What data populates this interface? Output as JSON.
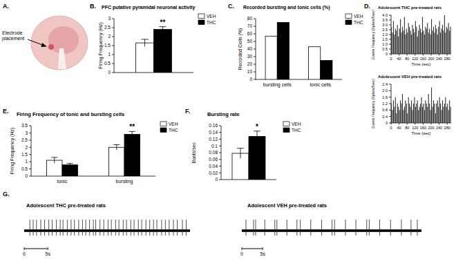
{
  "chart_data": [
    {
      "type": "bar",
      "panel": "B.",
      "title": "PFC putative pyramidal neuronal activity",
      "y_label": "Firing Frequency (Hz)",
      "categories": [
        null
      ],
      "series": [
        {
          "name": "VEH",
          "color": "#ffffff",
          "values": [
            1.65
          ],
          "errors": [
            0.2
          ]
        },
        {
          "name": "THC",
          "color": "#000000",
          "values": [
            2.4
          ],
          "errors": [
            0.15
          ]
        }
      ],
      "ylim": [
        0,
        3
      ],
      "yticks": [
        0,
        0.5,
        1,
        1.5,
        2,
        2.5,
        3
      ],
      "legend": "right",
      "annotations": [
        {
          "text": "**",
          "series": 1,
          "index": 0
        }
      ]
    },
    {
      "type": "bar",
      "panel": "C.",
      "title": "Recorded bursting and tonic cells (%)",
      "y_label": "Recorded Cells (%)",
      "categories": [
        "bursting cells",
        "tonic cells"
      ],
      "series": [
        {
          "name": "VEH",
          "color": "#ffffff",
          "values": [
            57,
            43
          ]
        },
        {
          "name": "THC",
          "color": "#000000",
          "values": [
            75,
            25
          ]
        }
      ],
      "ylim": [
        0,
        80
      ],
      "yticks": [
        0,
        10,
        20,
        30,
        40,
        50,
        60,
        70,
        80
      ],
      "legend": "right"
    },
    {
      "type": "histogram",
      "panel": "D.",
      "title": "Adolescent THC pre-treated rats",
      "x_label": "Time (sec)",
      "y_label": "Events Frequency (Spikes/5sec)",
      "color": "#333333",
      "bins": [
        0,
        5,
        10,
        15,
        20,
        25,
        30,
        35,
        40,
        45,
        50,
        55,
        60,
        65,
        70,
        75,
        80,
        85,
        90,
        95,
        100,
        105,
        110,
        115,
        120,
        125,
        130,
        135,
        140,
        145,
        150,
        155,
        160,
        165,
        170,
        175,
        180,
        185,
        190,
        195,
        200,
        205,
        210,
        215,
        220,
        225,
        230,
        235,
        240,
        245,
        250,
        255,
        260,
        265,
        270,
        275,
        280,
        285,
        290,
        295,
        300
      ],
      "values": [
        2.8,
        2.2,
        3.4,
        2.0,
        2.6,
        2.4,
        3.0,
        1.8,
        2.6,
        3.6,
        2.2,
        2.8,
        2.4,
        3.8,
        2.0,
        2.6,
        2.2,
        3.2,
        2.8,
        2.4,
        2.0,
        3.0,
        2.6,
        2.2,
        3.4,
        2.8,
        1.8,
        2.4,
        3.0,
        2.6,
        2.2,
        3.8,
        2.4,
        2.0,
        2.8,
        2.6,
        3.2,
        2.2,
        2.6,
        2.0,
        3.6,
        2.4,
        2.8,
        2.2,
        3.0,
        2.6,
        2.0,
        2.8,
        3.4,
        2.2,
        2.6,
        3.0,
        2.4,
        4.0,
        2.2,
        2.8,
        2.6,
        3.2,
        2.4,
        2.8
      ],
      "xlim": [
        0,
        300
      ],
      "xticks": [
        0,
        40,
        80,
        120,
        160,
        200,
        240,
        280
      ],
      "ylim": [
        0,
        4
      ],
      "yticks": [
        0,
        0.5,
        {
          "value": 1,
          "label": "1.0"
        },
        1.5,
        {
          "value": 2,
          "label": "2.0"
        },
        2.5,
        {
          "value": 3,
          "label": "3.0"
        },
        3.5,
        {
          "value": 4,
          "label": "4.0"
        }
      ]
    },
    {
      "type": "histogram",
      "title": "Adolescent VEH pre-treated rats",
      "x_label": "Time (sec)",
      "y_label": "Events Frequency (Spikes/5sec)",
      "color": "#333333",
      "bins": [
        0,
        5,
        10,
        15,
        20,
        25,
        30,
        35,
        40,
        45,
        50,
        55,
        60,
        65,
        70,
        75,
        80,
        85,
        90,
        95,
        100,
        105,
        110,
        115,
        120,
        125,
        130,
        135,
        140,
        145,
        150,
        155,
        160,
        165,
        170,
        175,
        180,
        185,
        190,
        195,
        200,
        205,
        210,
        215,
        220,
        225,
        230,
        235,
        240,
        245,
        250,
        255,
        260,
        265,
        270,
        275,
        280,
        285,
        290,
        295,
        300
      ],
      "values": [
        1.2,
        0.8,
        1.4,
        1.0,
        1.6,
        0.6,
        1.2,
        1.0,
        0.8,
        1.4,
        1.2,
        1.8,
        0.8,
        1.0,
        1.4,
        1.2,
        0.6,
        1.6,
        1.2,
        1.0,
        1.4,
        0.8,
        1.2,
        1.6,
        1.0,
        1.2,
        1.4,
        0.8,
        1.0,
        1.2,
        1.6,
        1.0,
        1.2,
        0.8,
        1.4,
        1.2,
        1.0,
        1.8,
        1.2,
        0.8,
        2.2,
        1.0,
        1.4,
        1.2,
        0.6,
        1.2,
        1.4,
        1.0,
        1.6,
        1.2,
        0.8,
        1.4,
        1.0,
        1.2,
        1.6,
        1.0,
        1.2,
        0.8,
        1.4,
        1.0
      ],
      "xlim": [
        0,
        300
      ],
      "xticks": [
        0,
        40,
        80,
        120,
        160,
        200,
        240,
        280
      ],
      "ylim": [
        0,
        2.4
      ],
      "yticks": [
        0,
        0.4,
        0.8,
        1.2,
        1.6,
        {
          "value": 2,
          "label": "2.0"
        },
        2.4
      ]
    },
    {
      "type": "bar",
      "panel": "E.",
      "title": "Firing Frequency of tonic and bursting cells",
      "y_label": "Firing Frequency (Hz)",
      "categories": [
        "tonic",
        "bursting"
      ],
      "series": [
        {
          "name": "VEH",
          "color": "#ffffff",
          "values": [
            1.1,
            2.0
          ],
          "errors": [
            0.2,
            0.18
          ]
        },
        {
          "name": "THC",
          "color": "#000000",
          "values": [
            0.78,
            2.9
          ],
          "errors": [
            0.1,
            0.2
          ]
        }
      ],
      "ylim": [
        0,
        3.5
      ],
      "yticks": [
        0,
        0.5,
        1,
        1.5,
        2,
        2.5,
        3,
        3.5
      ],
      "legend": "right",
      "annotations": [
        {
          "text": "**",
          "series": 1,
          "index": 1
        }
      ]
    },
    {
      "type": "bar",
      "panel": "F.",
      "title": "Bursting rate",
      "y_label": "Busts/sec",
      "categories": [
        null
      ],
      "series": [
        {
          "name": "VEH",
          "color": "#ffffff",
          "values": [
            0.078
          ],
          "errors": [
            0.015
          ]
        },
        {
          "name": "THC",
          "color": "#000000",
          "values": [
            0.128
          ],
          "errors": [
            0.016
          ]
        }
      ],
      "ylim": [
        0,
        0.16
      ],
      "yticks": [
        0,
        0.02,
        0.04,
        0.06,
        0.08,
        0.1,
        0.12,
        0.14,
        0.16
      ],
      "legend": "right",
      "annotations": [
        {
          "text": "*",
          "series": 1,
          "index": 0
        }
      ]
    },
    {
      "type": "trace",
      "panel": "G.",
      "title": "Adolescent THC pre-treated rats",
      "spike_times": [
        1.2,
        1.9,
        2.6,
        3.5,
        4.3,
        5.2,
        5.9,
        6.8,
        7.6,
        8.2,
        9.1,
        9.9,
        10.6,
        11.5,
        12.3,
        13.0,
        13.8,
        14.6,
        15.1,
        16.0,
        16.8,
        17.7,
        18.4,
        19.3,
        20.0,
        20.9,
        21.6,
        22.5,
        23.2,
        24.1,
        24.8,
        25.7,
        26.5,
        27.3,
        28.0,
        29.0,
        29.8,
        30.6,
        31.5,
        32.3,
        33.4,
        34.2
      ],
      "xlim": [
        0,
        35
      ],
      "xticks": [
        0,
        {
          "value": 5,
          "label": "5s"
        }
      ]
    },
    {
      "type": "trace",
      "title": "Adolescent VEH pre-treated rats",
      "spike_times": [
        1.0,
        2.8,
        3.3,
        5.5,
        7.9,
        8.4,
        10.8,
        13.2,
        14.0,
        16.5,
        19.1,
        21.6,
        22.2,
        24.8,
        27.3,
        29.9,
        30.5,
        33.0,
        35.6,
        38.2,
        40.5,
        42.0
      ],
      "xlim": [
        0,
        43
      ],
      "xticks": [
        0,
        {
          "value": 5,
          "label": "5s"
        }
      ]
    }
  ],
  "image_panel": {
    "panel": "A.",
    "label": "Electrode placement"
  }
}
